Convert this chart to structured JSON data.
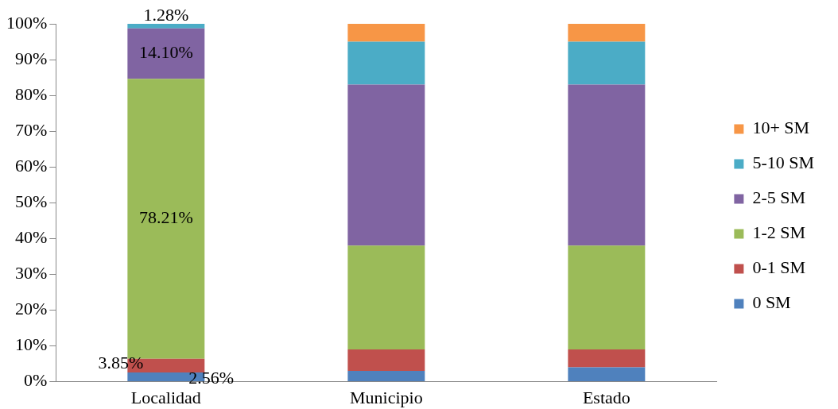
{
  "chart_data": {
    "type": "bar",
    "stacked": true,
    "categories": [
      "Localidad",
      "Municipio",
      "Estado"
    ],
    "series": [
      {
        "name": "0 SM",
        "color": "#4f81bd",
        "values": [
          2.56,
          3,
          4
        ],
        "value_labels": [
          "2.56%",
          null,
          null
        ]
      },
      {
        "name": "0-1 SM",
        "color": "#c0504d",
        "values": [
          3.85,
          6,
          5
        ],
        "value_labels": [
          "3.85%",
          null,
          null
        ]
      },
      {
        "name": "1-2 SM",
        "color": "#9bbb59",
        "values": [
          78.21,
          29,
          29
        ],
        "value_labels": [
          "78.21%",
          null,
          null
        ]
      },
      {
        "name": "2-5 SM",
        "color": "#8064a2",
        "values": [
          14.1,
          45,
          45
        ],
        "value_labels": [
          "14.10%",
          null,
          null
        ]
      },
      {
        "name": "5-10 SM",
        "color": "#4bacc6",
        "values": [
          1.28,
          12,
          12
        ],
        "value_labels": [
          "1.28%",
          null,
          null
        ]
      },
      {
        "name": "10+ SM",
        "color": "#f79646",
        "values": [
          0,
          5,
          5
        ],
        "value_labels": [
          null,
          null,
          null
        ]
      }
    ],
    "ylim": [
      0,
      100
    ],
    "yticks": [
      {
        "value": 0,
        "label": "0%"
      },
      {
        "value": 10,
        "label": "10%"
      },
      {
        "value": 20,
        "label": "20%"
      },
      {
        "value": 30,
        "label": "30%"
      },
      {
        "value": 40,
        "label": "40%"
      },
      {
        "value": 50,
        "label": "50%"
      },
      {
        "value": 60,
        "label": "60%"
      },
      {
        "value": 70,
        "label": "70%"
      },
      {
        "value": 80,
        "label": "80%"
      },
      {
        "value": 90,
        "label": "90%"
      },
      {
        "value": 100,
        "label": "100%"
      }
    ],
    "grid": false,
    "legend": "right"
  }
}
